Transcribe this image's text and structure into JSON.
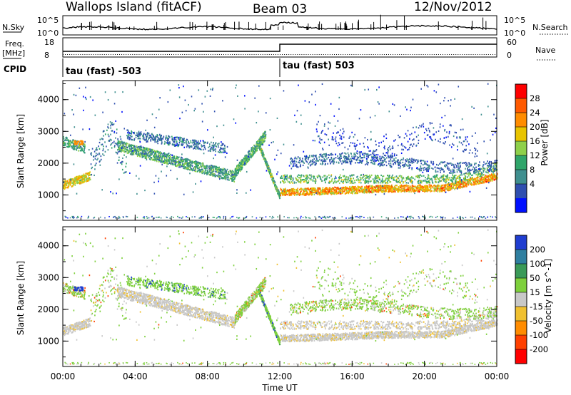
{
  "header": {
    "site": "Wallops Island (fitACF)",
    "beam": "Beam 03",
    "date": "12/Nov/2012"
  },
  "summary_panels": {
    "nsky_label": "N.Sky",
    "nsky_ticks": [
      "10^5",
      "10^0"
    ],
    "nsearch_label": "N.Search",
    "nsearch_ticks": [
      "10^5",
      "10^0"
    ],
    "freq_label": "Freq.",
    "freq_unit": "[MHz]",
    "freq_ticks": [
      "18",
      "8"
    ],
    "nave_label": "Nave",
    "nave_ticks": [
      "60",
      "0"
    ],
    "cpid_label": "CPID",
    "cpid_left": "tau (fast) -503",
    "cpid_right": "tau (fast) 503"
  },
  "chart_data": [
    {
      "type": "heatmap",
      "name": "power",
      "ylabel": "Slant Range [km]",
      "yticks": [
        1000,
        2000,
        3000,
        4000
      ],
      "ylim": [
        200,
        4600
      ],
      "colorbar_label": "Power [dB]",
      "colorbar_ticks": [
        "28",
        "24",
        "20",
        "16",
        "12",
        "8",
        "4"
      ],
      "colorbar_colors": [
        "#ff0000",
        "#ff5a00",
        "#ff8c00",
        "#e8c400",
        "#8ed04a",
        "#2fa56a",
        "#3f8f8f",
        "#2f4fb0",
        "#0010ff"
      ]
    },
    {
      "type": "heatmap",
      "name": "velocity",
      "ylabel": "Slant Range [km]",
      "yticks": [
        1000,
        2000,
        3000,
        4000
      ],
      "ylim": [
        200,
        4600
      ],
      "colorbar_label": "Velocity [m s^-1]",
      "colorbar_ticks": [
        "200",
        "100",
        "50",
        "15",
        "-15",
        "-50",
        "-100",
        "-200"
      ],
      "colorbar_colors": [
        "#1f3dd0",
        "#2f7fa0",
        "#3a9a58",
        "#7ed03c",
        "#c8c8c8",
        "#f0c030",
        "#ff8c00",
        "#ff4000",
        "#ff0000"
      ]
    }
  ],
  "xaxis": {
    "label": "Time UT",
    "ticks": [
      "00:00",
      "04:00",
      "08:00",
      "12:00",
      "16:00",
      "20:00",
      "00:00"
    ]
  }
}
